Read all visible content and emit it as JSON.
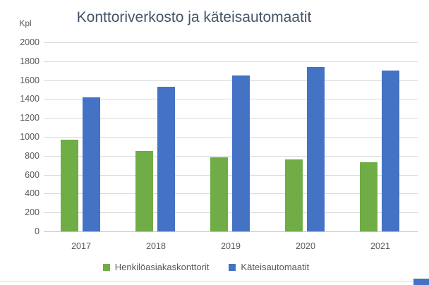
{
  "chart_data": {
    "type": "bar",
    "title": "Konttoriverkosto ja käteisautomaatit",
    "unit_label": "Kpl",
    "categories": [
      "2017",
      "2018",
      "2019",
      "2020",
      "2021"
    ],
    "series": [
      {
        "name": "Henkilöasiakaskonttorit",
        "color": "#70AD47",
        "values": [
          970,
          850,
          785,
          760,
          735
        ]
      },
      {
        "name": "Käteisautomaatit",
        "color": "#4472C4",
        "values": [
          1415,
          1530,
          1650,
          1740,
          1700
        ]
      }
    ],
    "ylim": [
      0,
      2000
    ],
    "ytick_step": 200,
    "yticks": [
      0,
      200,
      400,
      600,
      800,
      1000,
      1200,
      1400,
      1600,
      1800,
      2000
    ],
    "grid": true,
    "legend_position": "bottom",
    "colors": {
      "gridline": "#D9D9D9",
      "axis_line": "#C6C6C6",
      "axis_text": "#595959",
      "title_text": "#44546A"
    }
  },
  "decor": {
    "bottom_border_color": "#DCDCDC",
    "corner_fragment_color": "#4472C4"
  }
}
